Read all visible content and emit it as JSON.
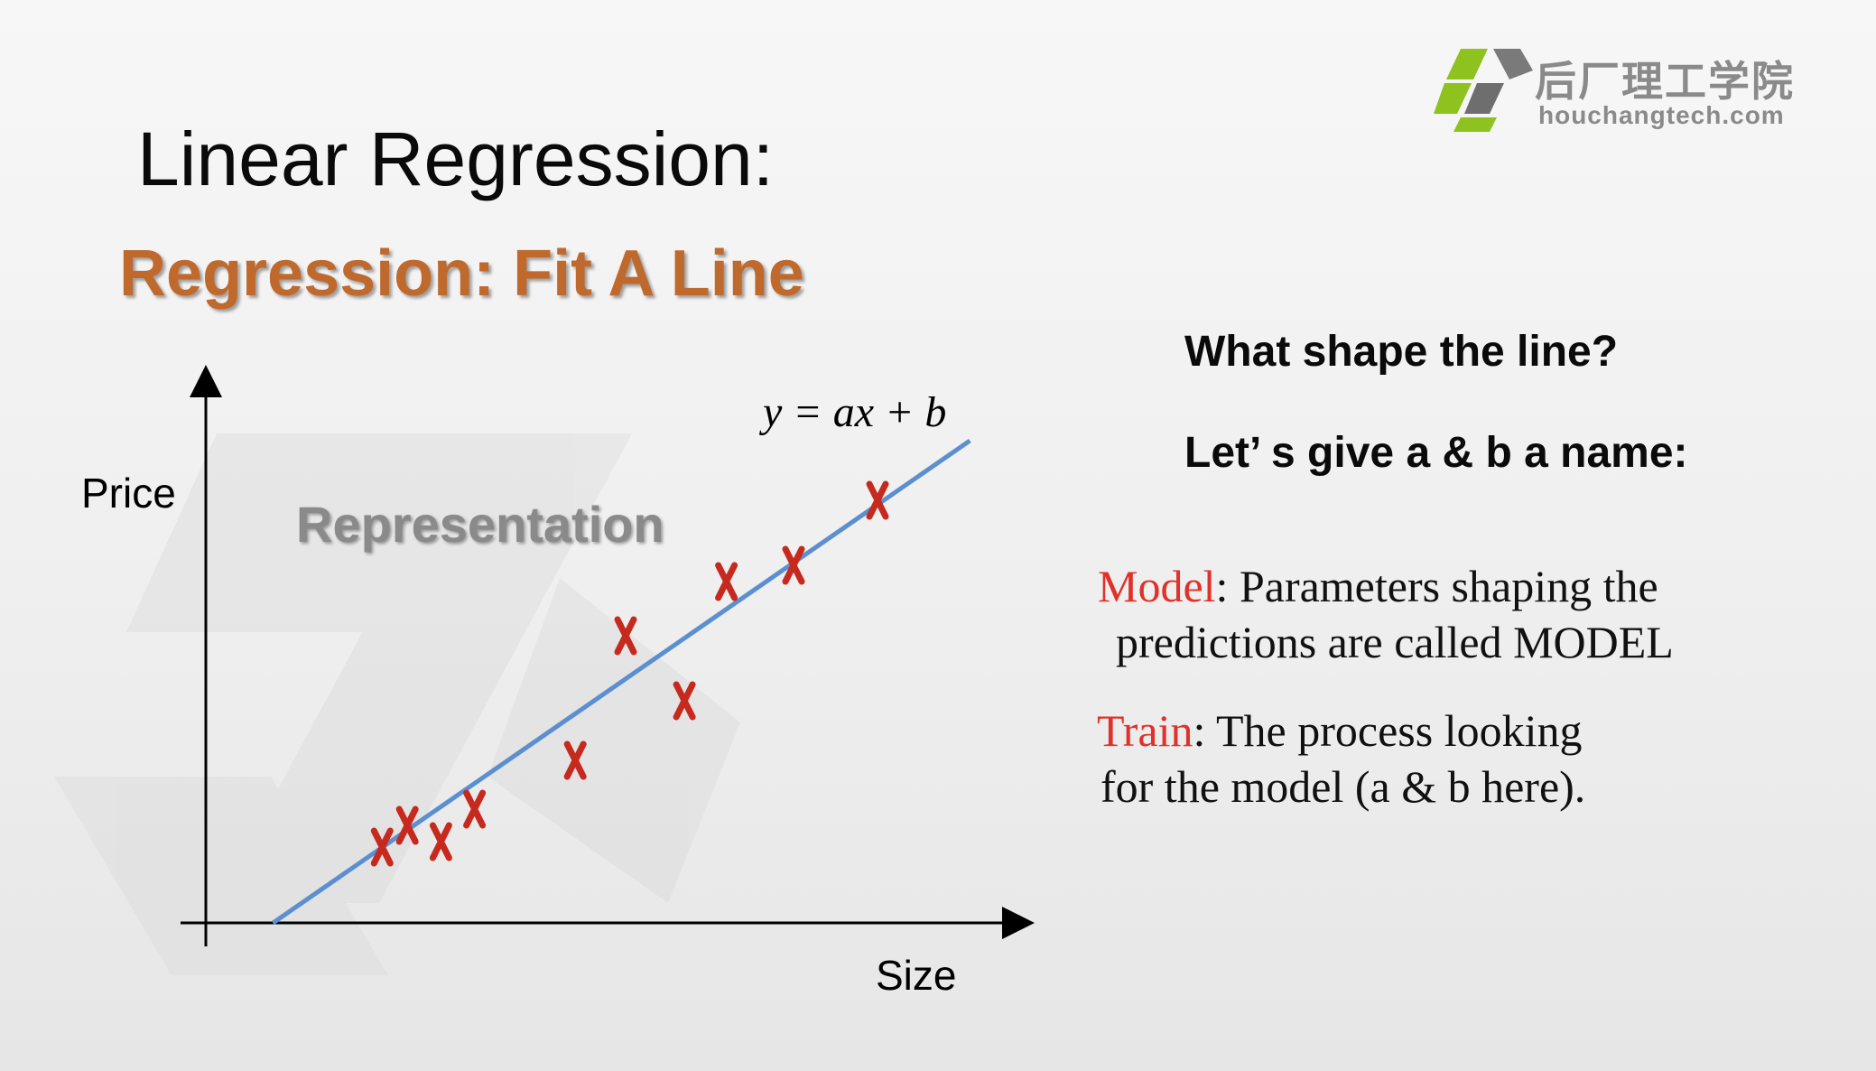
{
  "logo": {
    "cn_text": "后厂理工学院",
    "en_text": "houchangtech.com",
    "icon": "hc-cube-logo-icon",
    "colors": {
      "green": "#8dc21f",
      "gray": "#8a8a8a"
    }
  },
  "title": "Linear Regression:",
  "subtitle": "Regression: Fit A Line",
  "chart_data": {
    "type": "scatter",
    "title": "",
    "xlabel": "Size",
    "ylabel": "Price",
    "annotation": "Representation",
    "equation": "y = ax + b",
    "marker_color": "#c62a1e",
    "line_color": "#5b8fd0",
    "xlim": [
      0,
      10
    ],
    "ylim": [
      0,
      10
    ],
    "points": [
      {
        "x": 2.1,
        "y": 1.4
      },
      {
        "x": 2.4,
        "y": 1.8
      },
      {
        "x": 2.8,
        "y": 1.5
      },
      {
        "x": 3.2,
        "y": 2.1
      },
      {
        "x": 4.4,
        "y": 3.0
      },
      {
        "x": 5.0,
        "y": 5.3
      },
      {
        "x": 5.7,
        "y": 4.1
      },
      {
        "x": 6.2,
        "y": 6.3
      },
      {
        "x": 7.0,
        "y": 6.6
      },
      {
        "x": 8.0,
        "y": 7.8
      }
    ],
    "fit_line": {
      "x": [
        0.8,
        9.1
      ],
      "y": [
        0.0,
        8.9
      ]
    }
  },
  "right": {
    "question": "What shape the line?",
    "prompt": "Let’ s give a & b a name:",
    "model_term": "Model",
    "model_rest": ": Parameters shaping the",
    "model_line2": "predictions are called MODEL",
    "train_term": "Train",
    "train_rest": ": The process looking",
    "train_line2": "for the model (a & b here)."
  }
}
